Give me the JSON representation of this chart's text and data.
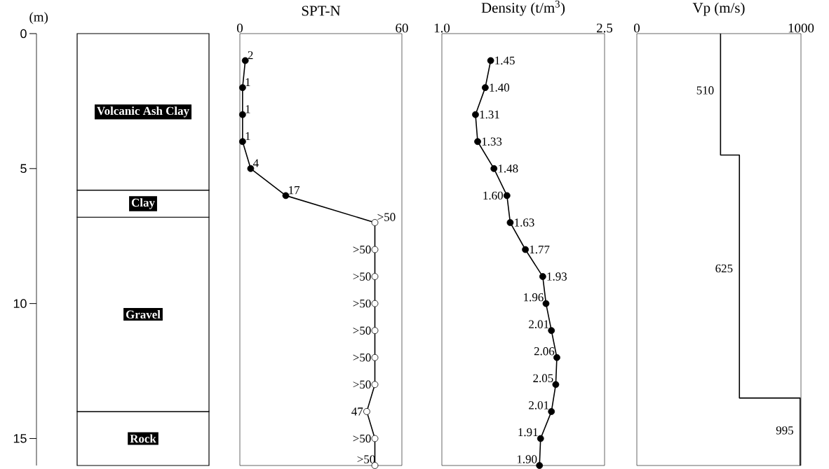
{
  "chart_data": [
    {
      "type": "bar",
      "stacked": true,
      "ylabel": "(m)",
      "categories": [
        null
      ],
      "ylim": [
        16,
        0
      ],
      "yticks": [
        0,
        5,
        10,
        15
      ],
      "tick_labels": "y",
      "series": [
        {
          "name": "Volcanic Ash Clay",
          "color": "#ffffff",
          "values": [
            5.8
          ]
        },
        {
          "name": "Clay",
          "color": "#ffffff",
          "values": [
            1.0
          ]
        },
        {
          "name": "Gravel",
          "color": "#ffffff",
          "values": [
            7.2
          ]
        },
        {
          "name": "Rock",
          "color": "#ffffff",
          "values": [
            2.0
          ]
        }
      ]
    },
    {
      "type": "line",
      "title": "SPT-N",
      "xlim": [
        0,
        60
      ],
      "xticks": [
        0,
        60
      ],
      "ylim": [
        16,
        0
      ],
      "tick_labels": "x",
      "marker": "circle",
      "line_style": "solid",
      "series": [
        {
          "color": "#000000",
          "colors": [
            "#000000",
            "#000000",
            "#000000",
            "#000000",
            "#000000",
            "#000000",
            "#ffffff",
            "#ffffff",
            "#ffffff",
            "#ffffff",
            "#ffffff",
            "#ffffff",
            "#ffffff",
            "#ffffff",
            "#ffffff",
            "#ffffff"
          ],
          "x": [
            2,
            1,
            1,
            1,
            4,
            17,
            50,
            50,
            50,
            50,
            50,
            50,
            50,
            47,
            50,
            50
          ],
          "values": [
            1,
            2,
            3,
            4,
            5,
            6,
            7,
            8,
            9,
            10,
            11,
            12,
            13,
            14,
            15,
            16
          ]
        }
      ],
      "annotations": [
        {
          "text": "2",
          "x": 2,
          "y": 1
        },
        {
          "text": "1",
          "x": 1,
          "y": 2
        },
        {
          "text": "1",
          "x": 1,
          "y": 3
        },
        {
          "text": "1",
          "x": 1,
          "y": 4
        },
        {
          "text": "4",
          "x": 4,
          "y": 5
        },
        {
          "text": "17",
          "x": 17,
          "y": 6
        },
        {
          "text": ">50",
          "x": 50,
          "y": 7
        },
        {
          "text": ">50",
          "x": 50,
          "y": 8
        },
        {
          "text": ">50",
          "x": 50,
          "y": 9
        },
        {
          "text": ">50",
          "x": 50,
          "y": 10
        },
        {
          "text": ">50",
          "x": 50,
          "y": 11
        },
        {
          "text": ">50",
          "x": 50,
          "y": 12
        },
        {
          "text": ">50",
          "x": 50,
          "y": 13
        },
        {
          "text": "47",
          "x": 47,
          "y": 14
        },
        {
          "text": ">50",
          "x": 50,
          "y": 15
        },
        {
          "text": ">50",
          "x": 50,
          "y": 16
        }
      ]
    },
    {
      "type": "line",
      "title": "Density (t/m$^{3}$)",
      "xlim": [
        1.0,
        2.5
      ],
      "xticks": [
        {
          "value": 1.0,
          "label": "1.0"
        },
        {
          "value": 2.5,
          "label": "2.5"
        }
      ],
      "ylim": [
        16,
        0
      ],
      "tick_labels": "x",
      "marker": "circle",
      "line_style": "solid",
      "series": [
        {
          "color": "#000000",
          "x": [
            1.45,
            1.4,
            1.31,
            1.33,
            1.48,
            1.6,
            1.63,
            1.77,
            1.93,
            1.96,
            2.01,
            2.06,
            2.05,
            2.01,
            1.91,
            1.9
          ],
          "values": [
            1,
            2,
            3,
            4,
            5,
            6,
            7,
            8,
            9,
            10,
            11,
            12,
            13,
            14,
            15,
            16
          ]
        }
      ],
      "annotations": [
        {
          "text": "1.45",
          "x": 1.45,
          "y": 1
        },
        {
          "text": "1.40",
          "x": 1.4,
          "y": 2
        },
        {
          "text": "1.31",
          "x": 1.31,
          "y": 3
        },
        {
          "text": "1.33",
          "x": 1.33,
          "y": 4
        },
        {
          "text": "1.48",
          "x": 1.48,
          "y": 5
        },
        {
          "text": "1.60",
          "x": 1.6,
          "y": 6
        },
        {
          "text": "1.63",
          "x": 1.63,
          "y": 7
        },
        {
          "text": "1.77",
          "x": 1.77,
          "y": 8
        },
        {
          "text": "1.93",
          "x": 1.93,
          "y": 9
        },
        {
          "text": "1.96",
          "x": 1.96,
          "y": 10
        },
        {
          "text": "2.01",
          "x": 2.01,
          "y": 11
        },
        {
          "text": "2.06",
          "x": 2.06,
          "y": 12
        },
        {
          "text": "2.05",
          "x": 2.05,
          "y": 13
        },
        {
          "text": "2.01",
          "x": 2.01,
          "y": 14
        },
        {
          "text": "1.91",
          "x": 1.91,
          "y": 15
        },
        {
          "text": "1.90",
          "x": 1.9,
          "y": 16
        }
      ]
    },
    {
      "type": "line",
      "title": "Vp (m/s)",
      "xlim": [
        0,
        1000
      ],
      "xticks": [
        0,
        1000
      ],
      "ylim": [
        16,
        0
      ],
      "tick_labels": "x",
      "line_style": "solid",
      "series": [
        {
          "color": "#000000",
          "x": [
            510,
            510,
            625,
            625,
            995,
            995
          ],
          "values": [
            0,
            4.5,
            4.5,
            13.5,
            13.5,
            16
          ]
        }
      ],
      "annotations": [
        {
          "text": "510",
          "x": 510,
          "y": 2.1
        },
        {
          "text": "625",
          "x": 625,
          "y": 8.7
        },
        {
          "text": "995",
          "x": 995,
          "y": 14.7
        }
      ]
    }
  ]
}
